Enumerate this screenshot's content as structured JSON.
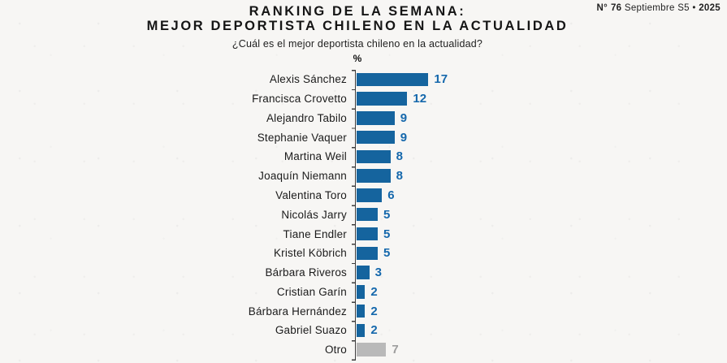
{
  "edition": {
    "number_label": "N°",
    "number": "76",
    "period": "Septiembre S5",
    "separator": "•",
    "year": "2025"
  },
  "header": {
    "title_line1": "RANKING DE LA SEMANA:",
    "title_line2": "MEJOR DEPORTISTA CHILENO EN LA ACTUALIDAD",
    "subtitle": "¿Cuál es el mejor deportista chileno en la actualidad?",
    "unit_label": "%"
  },
  "chart_data": {
    "type": "bar",
    "orientation": "horizontal",
    "title": "RANKING DE LA SEMANA: MEJOR DEPORTISTA CHILENO EN LA ACTUALIDAD",
    "subtitle": "¿Cuál es el mejor deportista chileno en la actualidad?",
    "unit": "%",
    "categories": [
      "Alexis Sánchez",
      "Francisca Crovetto",
      "Alejandro Tabilo",
      "Stephanie Vaquer",
      "Martina Weil",
      "Joaquín Niemann",
      "Valentina Toro",
      "Nicolás Jarry",
      "Tiane Endler",
      "Kristel Köbrich",
      "Bárbara Riveros",
      "Cristian Garín",
      "Bárbara Hernández",
      "Gabriel Suazo",
      "Otro"
    ],
    "values": [
      17,
      12,
      9,
      9,
      8,
      8,
      6,
      5,
      5,
      5,
      3,
      2,
      2,
      2,
      7
    ],
    "muted_categories": [
      "Otro"
    ],
    "xlim": [
      0,
      18
    ],
    "grid": false,
    "legend": "none",
    "bar_color": "#15649e",
    "value_color": "#1568ac",
    "muted_bar_color": "#b9b9b9",
    "muted_value_color": "#9e9e9e",
    "axis_color": "#3c3c3c"
  }
}
